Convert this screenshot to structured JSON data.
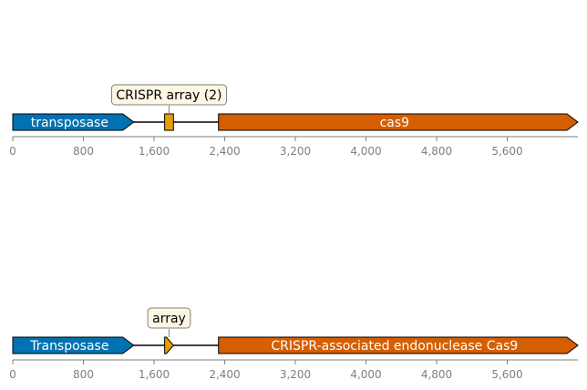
{
  "tracks": [
    {
      "axis": {
        "min": 0,
        "max": 6400,
        "ticks": [
          0,
          800,
          1600,
          2400,
          3200,
          4000,
          4800,
          5600
        ],
        "tick_labels": [
          "0",
          "800",
          "1,600",
          "2,400",
          "3,200",
          "4,000",
          "4,800",
          "5,600"
        ]
      },
      "features": [
        {
          "label": "transposase",
          "start": 0,
          "end": 1370,
          "shape": "arrow",
          "color": "#0072b2"
        },
        {
          "label": "",
          "start": 1720,
          "end": 1820,
          "shape": "box",
          "color": "#e69f00"
        },
        {
          "label": "cas9",
          "start": 2330,
          "end": 6400,
          "shape": "arrow",
          "color": "#d55e00"
        }
      ],
      "annotation": {
        "label": "CRISPR array (2)",
        "target": 1770
      }
    },
    {
      "axis": {
        "min": 0,
        "max": 6400,
        "ticks": [
          0,
          800,
          1600,
          2400,
          3200,
          4000,
          4800,
          5600
        ],
        "tick_labels": [
          "0",
          "800",
          "1,600",
          "2,400",
          "3,200",
          "4,000",
          "4,800",
          "5,600"
        ]
      },
      "features": [
        {
          "label": "Transposase",
          "start": 0,
          "end": 1370,
          "shape": "arrow",
          "color": "#0072b2"
        },
        {
          "label": "",
          "start": 1720,
          "end": 1820,
          "shape": "arrow",
          "color": "#e69f00"
        },
        {
          "label": "CRISPR-associated endonuclease Cas9",
          "start": 2330,
          "end": 6400,
          "shape": "arrow",
          "color": "#d55e00"
        }
      ],
      "annotation": {
        "label": "array",
        "target": 1770
      }
    }
  ],
  "colors": {
    "line": "#000000",
    "tick": "#7f7f7f",
    "annot_fill": "#fdf6e3",
    "annot_stroke": "#7f7f7f"
  }
}
